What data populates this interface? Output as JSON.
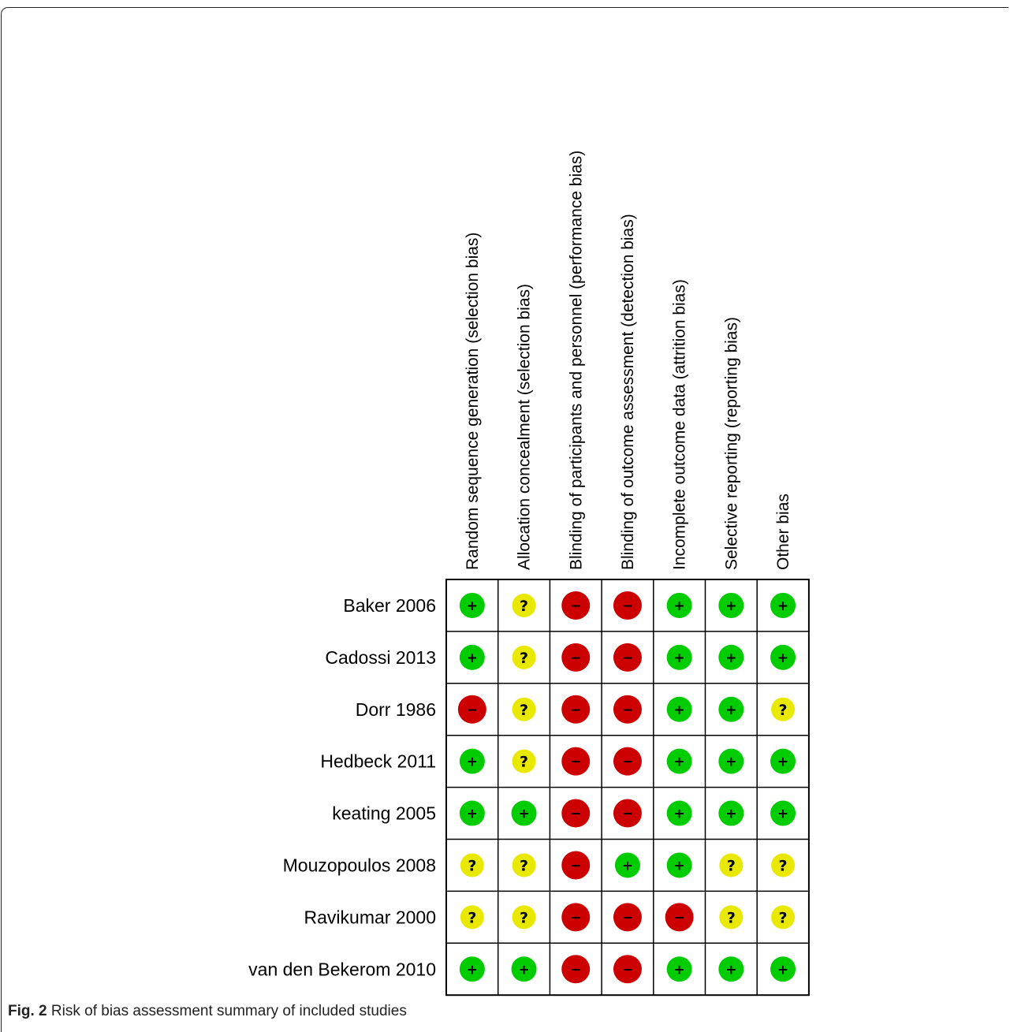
{
  "caption": {
    "label": "Fig. 2",
    "text": "Risk of bias assessment summary of included studies"
  },
  "colors": {
    "low": "#00cc00",
    "unclear": "#e8e800",
    "high": "#cc0000"
  },
  "symbols": {
    "low": "+",
    "unclear": "?",
    "high": "−"
  },
  "chart_data": {
    "type": "table",
    "columns": [
      "Random sequence generation (selection bias)",
      "Allocation concealment (selection bias)",
      "Blinding of participants and personnel (performance bias)",
      "Blinding of outcome assessment (detection bias)",
      "Incomplete outcome data (attrition bias)",
      "Selective reporting (reporting bias)",
      "Other bias"
    ],
    "rows": [
      {
        "study": "Baker 2006",
        "ratings": [
          "low",
          "unclear",
          "high",
          "high",
          "low",
          "low",
          "low"
        ]
      },
      {
        "study": "Cadossi 2013",
        "ratings": [
          "low",
          "unclear",
          "high",
          "high",
          "low",
          "low",
          "low"
        ]
      },
      {
        "study": "Dorr 1986",
        "ratings": [
          "high",
          "unclear",
          "high",
          "high",
          "low",
          "low",
          "unclear"
        ]
      },
      {
        "study": "Hedbeck 2011",
        "ratings": [
          "low",
          "unclear",
          "high",
          "high",
          "low",
          "low",
          "low"
        ]
      },
      {
        "study": "keating 2005",
        "ratings": [
          "low",
          "low",
          "high",
          "high",
          "low",
          "low",
          "low"
        ]
      },
      {
        "study": "Mouzopoulos 2008",
        "ratings": [
          "unclear",
          "unclear",
          "high",
          "low",
          "low",
          "unclear",
          "unclear"
        ]
      },
      {
        "study": "Ravikumar 2000",
        "ratings": [
          "unclear",
          "unclear",
          "high",
          "high",
          "high",
          "unclear",
          "unclear"
        ]
      },
      {
        "study": "van den Bekerom 2010",
        "ratings": [
          "low",
          "low",
          "high",
          "high",
          "low",
          "low",
          "low"
        ]
      }
    ]
  }
}
